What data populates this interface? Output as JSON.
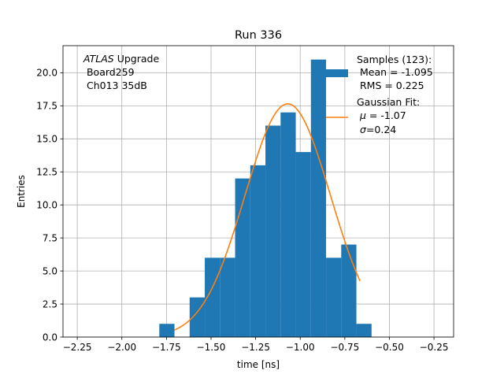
{
  "chart_data": {
    "type": "bar",
    "title": "Run 336",
    "xlabel": "time [ns]",
    "ylabel": "Entries",
    "xlim": [
      -2.33,
      -0.14
    ],
    "ylim": [
      0,
      22.05
    ],
    "grid": true,
    "xticks": [
      -2.25,
      -2.0,
      -1.75,
      -1.5,
      -1.25,
      -1.0,
      -0.75,
      -0.5,
      -0.25
    ],
    "xtick_labels": [
      "−2.25",
      "−2.00",
      "−1.75",
      "−1.50",
      "−1.25",
      "−1.00",
      "−0.75",
      "−0.50",
      "−0.25"
    ],
    "yticks": [
      0,
      2.5,
      5,
      7.5,
      10,
      12.5,
      15,
      17.5,
      20
    ],
    "ytick_labels": [
      "0.0",
      "2.5",
      "5.0",
      "7.5",
      "10.0",
      "12.5",
      "15.0",
      "17.5",
      "20.0"
    ],
    "histogram": {
      "color": "#1f77b4",
      "bin_edges": [
        -1.79,
        -1.705,
        -1.62,
        -1.535,
        -1.45,
        -1.365,
        -1.28,
        -1.195,
        -1.11,
        -1.025,
        -0.94,
        -0.855,
        -0.77,
        -0.685,
        -0.6
      ],
      "counts": [
        1,
        0,
        3,
        6,
        6,
        12,
        13,
        16,
        17,
        14,
        21,
        6,
        7,
        1
      ]
    },
    "fit": {
      "color": "#ff7f0e",
      "amplitude": 17.65,
      "mu": -1.07,
      "sigma": 0.24,
      "x_range": [
        -1.705,
        -0.665
      ]
    },
    "annotation": {
      "italic_word": "ATLAS",
      "line1_rest": " Upgrade",
      "line2": " Board259",
      "line3": " Ch013 35dB"
    },
    "legend": {
      "placement": "top-right",
      "samples_line1": "Samples (123):",
      "samples_line2": " Mean = -1.095",
      "samples_line3": " RMS = 0.225",
      "fit_line1": "Gaussian Fit:",
      "fit_line2_sym": "μ",
      "fit_line2_rest": " = -1.07",
      "fit_line3_sym": "σ",
      "fit_line3_rest": "=0.24"
    }
  }
}
